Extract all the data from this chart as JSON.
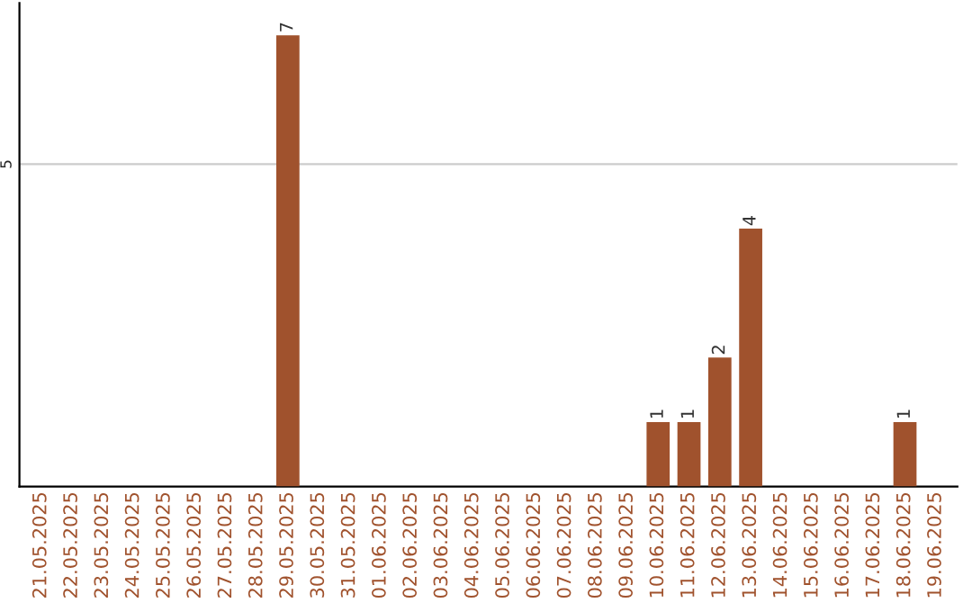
{
  "chart_data": {
    "type": "bar",
    "categories": [
      "21.05.2025",
      "22.05.2025",
      "23.05.2025",
      "24.05.2025",
      "25.05.2025",
      "26.05.2025",
      "27.05.2025",
      "28.05.2025",
      "29.05.2025",
      "30.05.2025",
      "31.05.2025",
      "01.06.2025",
      "02.06.2025",
      "03.06.2025",
      "04.06.2025",
      "05.06.2025",
      "06.06.2025",
      "07.06.2025",
      "08.06.2025",
      "09.06.2025",
      "10.06.2025",
      "11.06.2025",
      "12.06.2025",
      "13.06.2025",
      "14.06.2025",
      "15.06.2025",
      "16.06.2025",
      "17.06.2025",
      "18.06.2025",
      "19.06.2025"
    ],
    "values": [
      0,
      0,
      0,
      0,
      0,
      0,
      0,
      0,
      7,
      0,
      0,
      0,
      0,
      0,
      0,
      0,
      0,
      0,
      0,
      0,
      1,
      1,
      2,
      4,
      0,
      0,
      0,
      0,
      1,
      0
    ],
    "value_labels": [
      null,
      null,
      null,
      null,
      null,
      null,
      null,
      null,
      "7",
      null,
      null,
      null,
      null,
      null,
      null,
      null,
      null,
      null,
      null,
      null,
      "1",
      "1",
      "2",
      "4",
      null,
      null,
      null,
      null,
      "1",
      null
    ],
    "color": "#a0522d",
    "ylim": [
      0,
      7.5
    ],
    "yticks": [
      5
    ],
    "grid": "y",
    "legend": false
  }
}
